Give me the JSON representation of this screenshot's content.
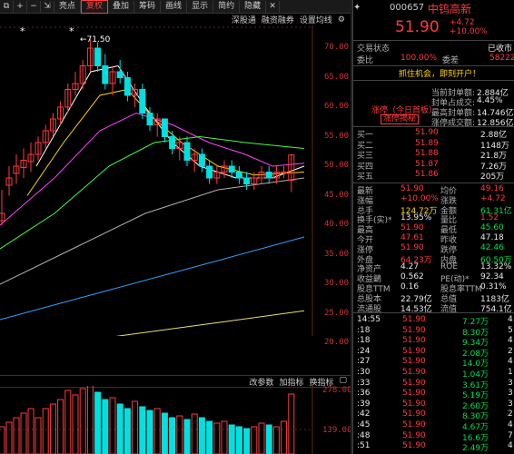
{
  "toolbar": {
    "items": [
      "亮点",
      "复权",
      "叠加",
      "筹码",
      "画线",
      "显示",
      "简约",
      "隐藏"
    ],
    "active": "复权",
    "icons": [
      "copy-icon",
      "plus-icon",
      "minus-icon",
      "scale-icon"
    ],
    "icon_glyphs": [
      "⧉",
      "+",
      "−",
      "⇲"
    ],
    "close_glyph": "✕"
  },
  "subbar": {
    "items": [
      "深股通",
      "融资融券",
      "设置均线"
    ],
    "settings_glyph": "⚙"
  },
  "price_chart": {
    "annotation": "←71.50",
    "y_ticks": [
      "70.00",
      "65.00",
      "60.00",
      "55.00",
      "50.00",
      "45.00",
      "40.00",
      "35.00",
      "30.00",
      "25.00",
      "20.00"
    ],
    "markers": [
      "*",
      "*"
    ]
  },
  "volume_chart": {
    "tabs": [
      "改参数",
      "加指标",
      "换指标"
    ],
    "y_ticks": [
      "278.00",
      "",
      "139.00"
    ]
  },
  "quote": {
    "code": "000657",
    "name": "中钨高新",
    "price": "51.90",
    "change": "+4.72",
    "pct": "+10.00%",
    "trade_status_label": "交易状态",
    "trade_status_value": "已收市",
    "ratio_label": "委比",
    "ratio_value": "100.00%",
    "diff_label": "委差",
    "diff_value": "58222",
    "promo": "抓住机会，即刻开户！",
    "limit_up_label": "涨停（今日首板）",
    "limit_up_btn": "涨停揭秘",
    "limit_stats": [
      {
        "label": "当前封单额:",
        "value": "2.884亿"
      },
      {
        "label": "封单占成交:",
        "value": "4.45%"
      },
      {
        "label": "最高封单额:",
        "value": "14.746亿"
      },
      {
        "label": "涨停成交额:",
        "value": "12.856亿"
      }
    ]
  },
  "order_book": [
    {
      "label": "买一",
      "price": "51.90",
      "vol": "2.88亿"
    },
    {
      "label": "买二",
      "price": "51.89",
      "vol": "1148万"
    },
    {
      "label": "买三",
      "price": "51.88",
      "vol": "21.8万"
    },
    {
      "label": "买四",
      "price": "51.87",
      "vol": "7.26万"
    },
    {
      "label": "买五",
      "price": "51.86",
      "vol": "205万"
    }
  ],
  "stats": [
    {
      "l1": "最新",
      "v1": "51.90",
      "c1": "red",
      "l2": "均价",
      "v2": "49.16",
      "c2": "red"
    },
    {
      "l1": "涨幅",
      "v1": "+10.00%",
      "c1": "red",
      "l2": "涨跌",
      "v2": "+4.72",
      "c2": "red"
    },
    {
      "l1": "总手",
      "v1": "124.72万",
      "c1": "yellow",
      "l2": "金额",
      "v2": "61.31亿",
      "c2": "green"
    },
    {
      "l1": "换手(实)*",
      "v1": "13.95%",
      "c1": "white",
      "l2": "量比",
      "v2": "1.52",
      "c2": "red"
    },
    {
      "l1": "最高",
      "v1": "51.90",
      "c1": "red",
      "l2": "最低",
      "v2": "45.60",
      "c2": "green"
    },
    {
      "l1": "今开",
      "v1": "47.61",
      "c1": "red",
      "l2": "昨收",
      "v2": "47.18",
      "c2": "white"
    },
    {
      "l1": "涨停",
      "v1": "51.90",
      "c1": "red",
      "l2": "跌停",
      "v2": "42.46",
      "c2": "green"
    },
    {
      "l1": "外盘",
      "v1": "64.23万",
      "c1": "red",
      "l2": "内盘",
      "v2": "60.50万",
      "c2": "green"
    },
    {
      "l1": "净资产",
      "v1": "4.27",
      "c1": "white",
      "l2": "ROE",
      "v2": "13.32%",
      "c2": "white"
    },
    {
      "l1": "收益鶅",
      "v1": "0.562",
      "c1": "white",
      "l2": "PE(动)*",
      "v2": "92.34",
      "c2": "white"
    },
    {
      "l1": "股息TTM",
      "v1": "0.16",
      "c1": "white",
      "l2": "股息率TTM",
      "v2": "0.31%",
      "c2": "white"
    },
    {
      "l1": "总股本",
      "v1": "22.79亿",
      "c1": "white",
      "l2": "总值",
      "v2": "1183亿",
      "c2": "white"
    },
    {
      "l1": "流通股",
      "v1": "14.53亿",
      "c1": "white",
      "l2": "流值",
      "v2": "754.1亿",
      "c2": "white"
    }
  ],
  "ticks": [
    {
      "time": "14:55",
      "price": "51.90",
      "vol": "7.27万",
      "extra": "4"
    },
    {
      "time": ":18",
      "price": "51.90",
      "vol": "8.30万",
      "extra": "5"
    },
    {
      "time": ":18",
      "price": "51.90",
      "vol": "9.34万",
      "extra": "4"
    },
    {
      "time": ":24",
      "price": "51.90",
      "vol": "2.08万",
      "extra": "2"
    },
    {
      "time": ":27",
      "price": "51.90",
      "vol": "14.0万",
      "extra": "4"
    },
    {
      "time": ":30",
      "price": "51.90",
      "vol": "1.04万",
      "extra": "1"
    },
    {
      "time": ":33",
      "price": "51.90",
      "vol": "3.61万",
      "extra": "3"
    },
    {
      "time": ":36",
      "price": "51.90",
      "vol": "5.19万",
      "extra": "3"
    },
    {
      "time": ":39",
      "price": "51.90",
      "vol": "2.60万",
      "extra": "3"
    },
    {
      "time": ":42",
      "price": "51.90",
      "vol": "8.30万",
      "extra": "2"
    },
    {
      "time": ":45",
      "price": "51.90",
      "vol": "4.67万",
      "extra": "4"
    },
    {
      "time": ":48",
      "price": "51.90",
      "vol": "16.6万",
      "extra": "7"
    },
    {
      "time": ":51",
      "price": "51.90",
      "vol": "2.49万",
      "extra": "4"
    }
  ],
  "colors": {
    "up": "#ff3b3b",
    "down": "#00e0e0",
    "ma5": "#ffffff",
    "ma10": "#ffd700",
    "ma20": "#ff40ff",
    "ma30": "#40ff40",
    "ma60": "#b0b0b0",
    "ma120": "#30a0ff",
    "ma250": "#e8e070"
  }
}
